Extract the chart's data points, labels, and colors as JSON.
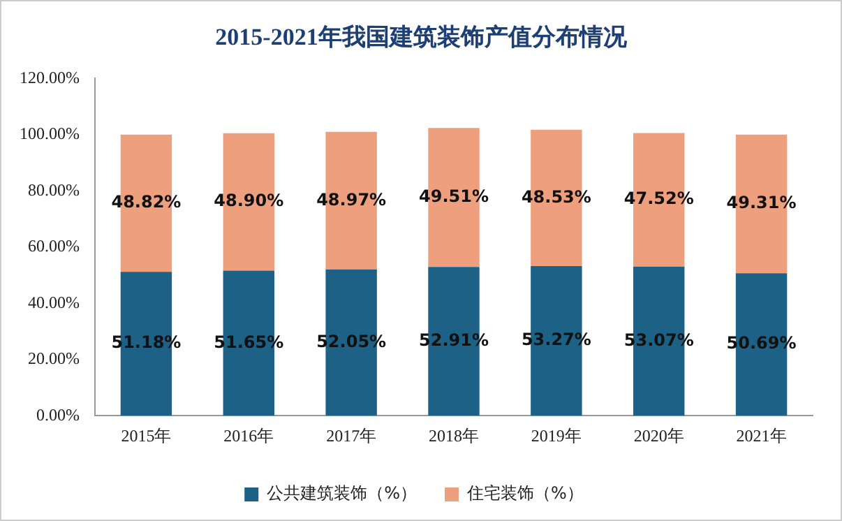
{
  "chart_data": {
    "type": "bar",
    "title": "2015-2021年我国建筑装饰产值分布情况",
    "categories": [
      "2015年",
      "2016年",
      "2017年",
      "2018年",
      "2019年",
      "2020年",
      "2021年"
    ],
    "stacked": true,
    "series": [
      {
        "name": "公共建筑装饰（%）",
        "color": "#1d6186",
        "values": [
          51.18,
          51.65,
          52.05,
          52.91,
          53.27,
          53.07,
          50.69
        ],
        "value_labels": [
          "51.18%",
          "51.65%",
          "52.05%",
          "52.91%",
          "53.27%",
          "53.07%",
          "50.69%"
        ]
      },
      {
        "name": "住宅装饰（%）",
        "color": "#eea07e",
        "values": [
          48.82,
          48.9,
          48.97,
          49.51,
          48.53,
          47.52,
          49.31
        ],
        "value_labels": [
          "48.82%",
          "48.90%",
          "48.97%",
          "49.51%",
          "48.53%",
          "47.52%",
          "49.31%"
        ]
      }
    ],
    "ylim": [
      0,
      120
    ],
    "yticks": [
      {
        "value": 0,
        "label": "0.00%"
      },
      {
        "value": 20,
        "label": "20.00%"
      },
      {
        "value": 40,
        "label": "40.00%"
      },
      {
        "value": 60,
        "label": "60.00%"
      },
      {
        "value": 80,
        "label": "80.00%"
      },
      {
        "value": 100,
        "label": "100.00%"
      },
      {
        "value": 120,
        "label": "120.00%"
      }
    ],
    "grid": false,
    "legend": "bottom"
  }
}
